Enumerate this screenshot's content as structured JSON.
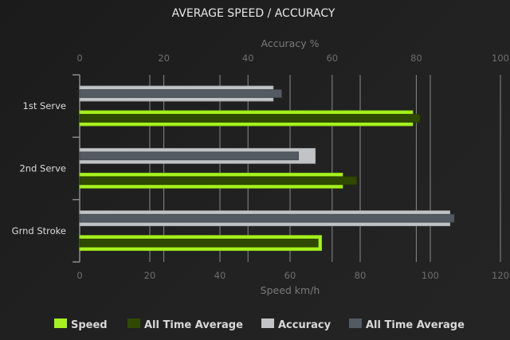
{
  "chart_data": {
    "type": "bar",
    "orientation": "horizontal",
    "title": "AVERAGE SPEED / ACCURACY",
    "categories": [
      "1st Serve",
      "2nd Serve",
      "Grnd Stroke"
    ],
    "x_axis_top": {
      "label": "Accuracy %",
      "range": [
        0,
        100
      ],
      "ticks": [
        "0",
        "20",
        "40",
        "60",
        "80",
        "100"
      ]
    },
    "x_axis_bottom": {
      "label": "Speed km/h",
      "range": [
        0,
        120
      ],
      "ticks": [
        "0",
        "20",
        "40",
        "60",
        "80",
        "100",
        "120"
      ]
    },
    "grid": true,
    "legend_position": "bottom",
    "series": [
      {
        "name": "Speed",
        "axis": "bottom",
        "color": "#a6f21e",
        "values": [
          95,
          75,
          69
        ]
      },
      {
        "name": "All Time Average",
        "axis": "bottom",
        "color": "#2f4a00",
        "values": [
          97,
          79,
          68
        ]
      },
      {
        "name": "Accuracy",
        "axis": "top",
        "color": "#c0c4c6",
        "values": [
          46,
          56,
          88
        ]
      },
      {
        "name": "All Time Average",
        "axis": "top",
        "color": "#545a61",
        "values": [
          48,
          52,
          89
        ]
      }
    ]
  }
}
